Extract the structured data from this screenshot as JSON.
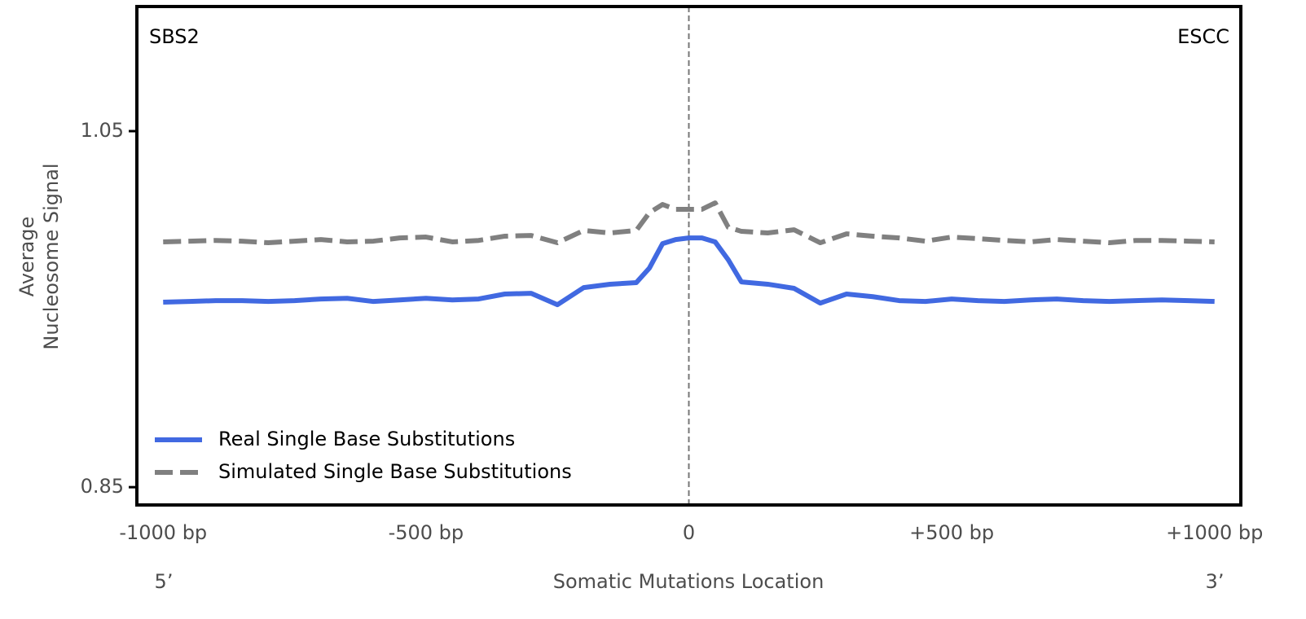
{
  "chart_data": {
    "type": "line",
    "annotations": {
      "left": "SBS2",
      "right": "ESCC"
    },
    "ylabel": [
      "Average",
      "Nucleosome Signal"
    ],
    "xlabel": "Somatic Mutations Location",
    "xend_labels": [
      "5’",
      "3’"
    ],
    "xlim": [
      -1050,
      1050
    ],
    "ylim": [
      0.84,
      1.12
    ],
    "xticks": [
      {
        "value": -1000,
        "label": "-1000 bp"
      },
      {
        "value": -500,
        "label": "-500 bp"
      },
      0,
      {
        "value": 500,
        "label": "+500 bp"
      },
      {
        "value": 1000,
        "label": "+1000 bp"
      }
    ],
    "yticks": [
      1.05,
      0.85
    ],
    "vline": 0,
    "legend": "lower left",
    "x": [
      -1000,
      -950,
      -900,
      -850,
      -800,
      -750,
      -700,
      -650,
      -600,
      -550,
      -500,
      -450,
      -400,
      -350,
      -300,
      -250,
      -200,
      -150,
      -100,
      -75,
      -50,
      -25,
      0,
      25,
      50,
      75,
      100,
      150,
      200,
      250,
      300,
      350,
      400,
      450,
      500,
      550,
      600,
      650,
      700,
      750,
      800,
      850,
      900,
      950,
      1000
    ],
    "series": [
      {
        "name": "Real Single Base Substitutions",
        "color": "#4169e1",
        "dash": false,
        "values": [
          0.9539,
          0.9543,
          0.9548,
          0.9548,
          0.9543,
          0.9548,
          0.9557,
          0.9561,
          0.9543,
          0.9552,
          0.9561,
          0.9552,
          0.9557,
          0.9585,
          0.9589,
          0.9525,
          0.9621,
          0.964,
          0.9649,
          0.9731,
          0.9868,
          0.9891,
          0.99,
          0.99,
          0.9878,
          0.9777,
          0.9653,
          0.964,
          0.9617,
          0.9534,
          0.9585,
          0.957,
          0.9548,
          0.9543,
          0.9557,
          0.9548,
          0.9543,
          0.9552,
          0.9557,
          0.9548,
          0.9543,
          0.9548,
          0.9552,
          0.9548,
          0.9543
        ]
      },
      {
        "name": "Simulated Single Base Substitutions",
        "color": "#808080",
        "dash": true,
        "values": [
          0.9878,
          0.9882,
          0.9886,
          0.9882,
          0.9873,
          0.9882,
          0.9891,
          0.9878,
          0.9882,
          0.99,
          0.9905,
          0.9878,
          0.9886,
          0.991,
          0.9914,
          0.9873,
          0.9942,
          0.9928,
          0.9942,
          1.0042,
          1.0088,
          1.0061,
          1.0061,
          1.0061,
          1.0097,
          0.996,
          0.9937,
          0.9928,
          0.9946,
          0.9873,
          0.9923,
          0.991,
          0.99,
          0.9882,
          0.9905,
          0.9896,
          0.9886,
          0.9878,
          0.9891,
          0.9882,
          0.9873,
          0.9886,
          0.9886,
          0.9882,
          0.9878
        ]
      }
    ]
  }
}
